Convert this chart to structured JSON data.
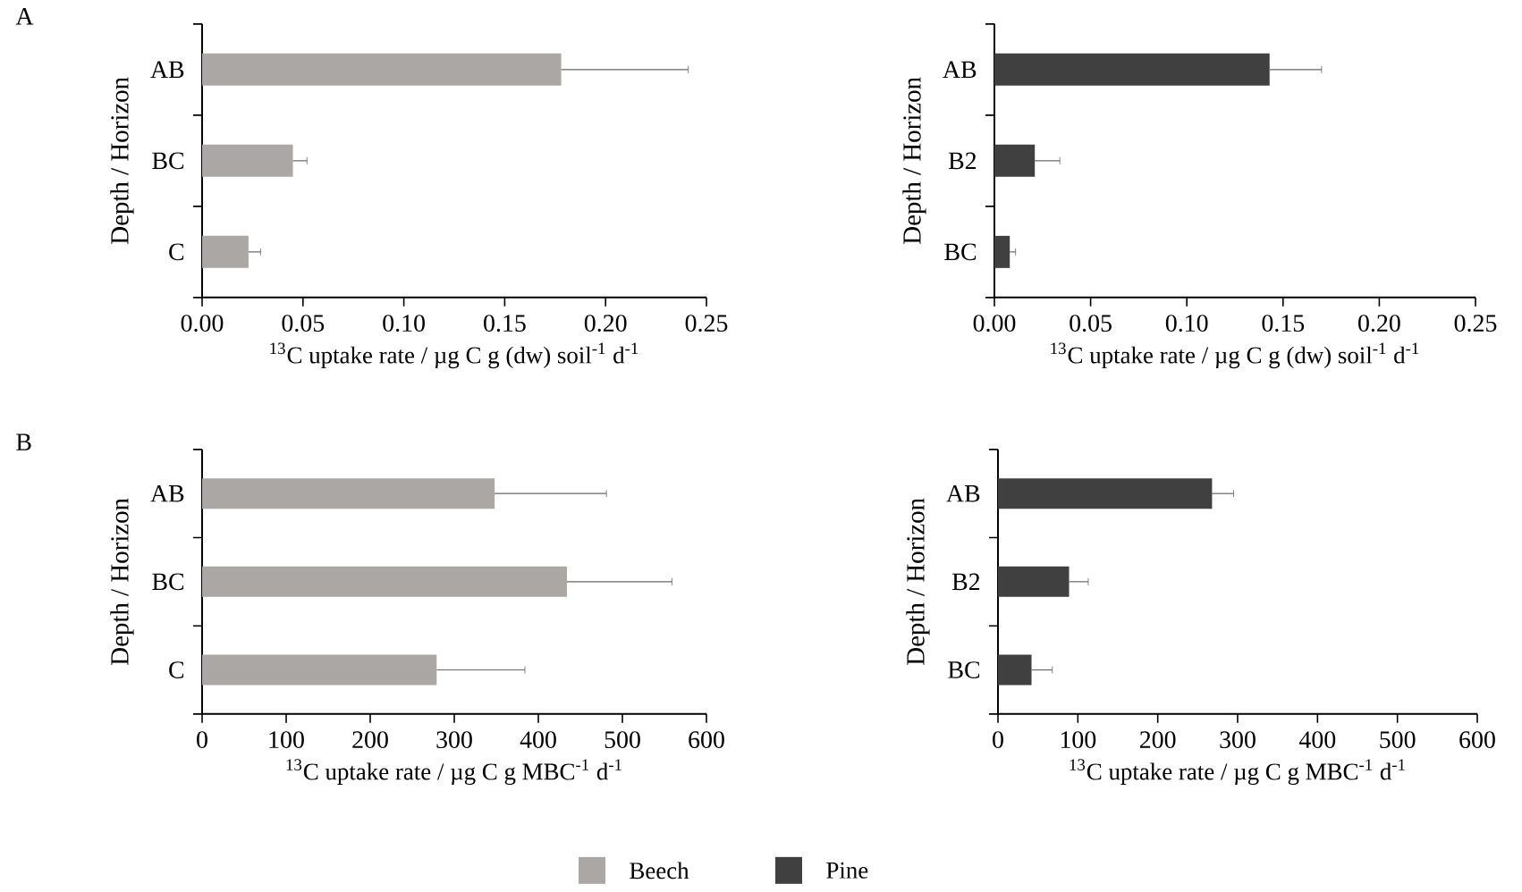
{
  "chart_data": [
    {
      "type": "bar",
      "orientation": "horizontal",
      "title": "A",
      "xlabel": "$^{13}$C uptake rate / µg C g (dw) soil$^{-1}$ d$^{-1}$",
      "ylabel": "Depth / Horizon",
      "categories": [
        "AB",
        "BC",
        "C"
      ],
      "series": [
        {
          "color": "#aba7a5",
          "values": [
            0.178,
            0.045,
            0.023
          ],
          "errors": [
            0.063,
            0.007,
            0.006
          ]
        }
      ],
      "xlim": [
        0,
        0.25
      ],
      "xticks": [
        {
          "value": 0,
          "label": "0.00"
        },
        {
          "value": 0.05,
          "label": "0.05"
        },
        {
          "value": 0.1,
          "label": "0.10"
        },
        {
          "value": 0.15,
          "label": "0.15"
        },
        {
          "value": 0.2,
          "label": "0.20"
        },
        {
          "value": 0.25,
          "label": "0.25"
        }
      ]
    },
    {
      "type": "bar",
      "orientation": "horizontal",
      "xlabel": "$^{13}$C uptake rate / µg C g (dw) soil$^{-1}$ d$^{-1}$",
      "ylabel": "Depth / Horizon",
      "categories": [
        "AB",
        "B2",
        "BC"
      ],
      "series": [
        {
          "color": "#404040",
          "values": [
            0.143,
            0.021,
            0.008
          ],
          "errors": [
            0.027,
            0.013,
            0.003
          ]
        }
      ],
      "xlim": [
        0,
        0.25
      ],
      "xticks": [
        {
          "value": 0,
          "label": "0.00"
        },
        {
          "value": 0.05,
          "label": "0.05"
        },
        {
          "value": 0.1,
          "label": "0.10"
        },
        {
          "value": 0.15,
          "label": "0.15"
        },
        {
          "value": 0.2,
          "label": "0.20"
        },
        {
          "value": 0.25,
          "label": "0.25"
        }
      ]
    },
    {
      "type": "bar",
      "orientation": "horizontal",
      "title": "B",
      "xlabel": "$^{13}$C uptake rate / µg C g MBC$^{-1}$ d$^{-1}$",
      "ylabel": "Depth / Horizon",
      "categories": [
        "AB",
        "BC",
        "C"
      ],
      "legend": "bottom",
      "series": [
        {
          "name": "Beech",
          "color": "#aba7a5",
          "values": [
            348,
            434,
            279
          ],
          "errors": [
            133,
            125,
            105
          ]
        }
      ],
      "xlim": [
        0,
        600
      ],
      "xticks": [
        0,
        100,
        200,
        300,
        400,
        500,
        600
      ]
    },
    {
      "type": "bar",
      "orientation": "horizontal",
      "xlabel": "$^{13}$C uptake rate / µg C g MBC$^{-1}$ d$^{-1}$",
      "ylabel": "Depth / Horizon",
      "categories": [
        "AB",
        "B2",
        "BC"
      ],
      "legend": "bottom",
      "series": [
        {
          "name": "Pine",
          "color": "#404040",
          "values": [
            268,
            89,
            42
          ],
          "errors": [
            27,
            24,
            26
          ]
        }
      ],
      "xlim": [
        0,
        600
      ],
      "xticks": [
        0,
        100,
        200,
        300,
        400,
        500,
        600
      ]
    }
  ]
}
